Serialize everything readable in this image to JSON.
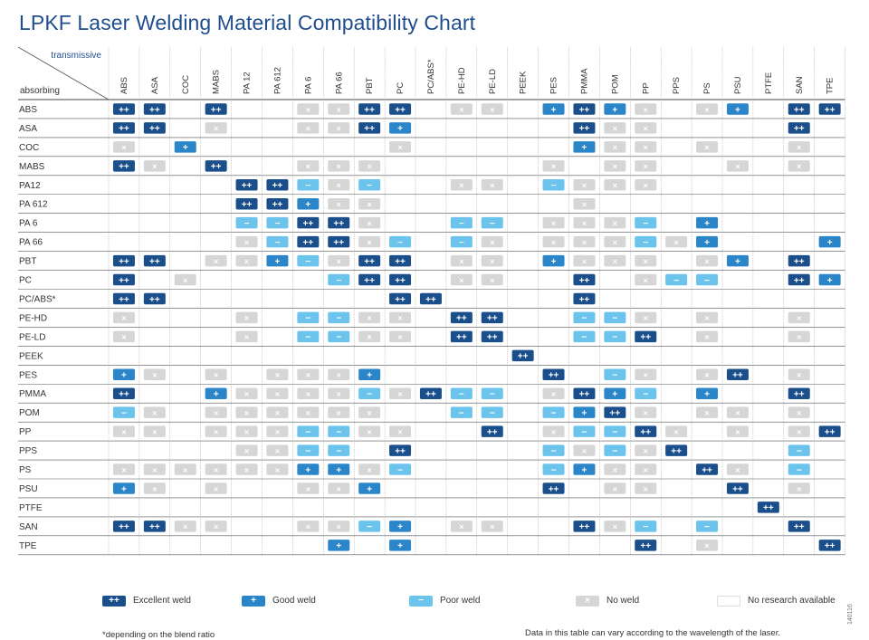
{
  "title": "LPKF Laser Welding Material Compatibility Chart",
  "chart_data": {
    "type": "table",
    "title": "LPKF Laser Welding Material Compatibility Chart",
    "column_axis_label": "transmissive",
    "row_axis_label": "absorbing",
    "columns": [
      "ABS",
      "ASA",
      "COC",
      "MABS",
      "PA 12",
      "PA 612",
      "PA 6",
      "PA 66",
      "PBT",
      "PC",
      "PC/ABS*",
      "PE-HD",
      "PE-LD",
      "PEEK",
      "PES",
      "PMMA",
      "POM",
      "PP",
      "PPS",
      "PS",
      "PSU",
      "PTFE",
      "SAN",
      "TPE"
    ],
    "rows": [
      "ABS",
      "ASA",
      "COC",
      "MABS",
      "PA12",
      "PA 612",
      "PA 6",
      "PA 66",
      "PBT",
      "PC",
      "PC/ABS*",
      "PE-HD",
      "PE-LD",
      "PEEK",
      "PES",
      "PMMA",
      "POM",
      "PP",
      "PPS",
      "PS",
      "PSU",
      "PTFE",
      "SAN",
      "TPE"
    ],
    "cells": [
      [
        "E",
        "E",
        "",
        "E",
        "",
        "",
        "N",
        "N",
        "E",
        "E",
        "",
        "N",
        "N",
        "",
        "G",
        "E",
        "G",
        "N",
        "",
        "N",
        "G",
        "",
        "E",
        "E"
      ],
      [
        "E",
        "E",
        "",
        "N",
        "",
        "",
        "N",
        "N",
        "E",
        "G",
        "",
        "",
        "",
        "",
        "",
        "E",
        "N",
        "N",
        "",
        "",
        "",
        "",
        "E",
        ""
      ],
      [
        "N",
        "",
        "G",
        "",
        "",
        "",
        "",
        "",
        "",
        "N",
        "",
        "",
        "",
        "",
        "",
        "G",
        "N",
        "N",
        "",
        "N",
        "",
        "",
        "N",
        ""
      ],
      [
        "E",
        "N",
        "",
        "E",
        "",
        "",
        "N",
        "N",
        "N",
        "",
        "",
        "",
        "",
        "",
        "N",
        "",
        "N",
        "N",
        "",
        "",
        "N",
        "",
        "N",
        ""
      ],
      [
        "",
        "",
        "",
        "",
        "E",
        "E",
        "P",
        "N",
        "P",
        "",
        "",
        "N",
        "N",
        "",
        "P",
        "N",
        "N",
        "N",
        "",
        "",
        "",
        "",
        "",
        ""
      ],
      [
        "",
        "",
        "",
        "",
        "E",
        "E",
        "G",
        "N",
        "N",
        "",
        "",
        "",
        "",
        "",
        "",
        "N",
        "",
        "",
        "",
        "",
        "",
        "",
        "",
        ""
      ],
      [
        "",
        "",
        "",
        "",
        "P",
        "P",
        "E",
        "E",
        "N",
        "",
        "",
        "P",
        "P",
        "",
        "N",
        "N",
        "N",
        "P",
        "",
        "G",
        "",
        "",
        "",
        ""
      ],
      [
        "",
        "",
        "",
        "",
        "N",
        "P",
        "E",
        "E",
        "N",
        "P",
        "",
        "P",
        "N",
        "",
        "N",
        "N",
        "N",
        "P",
        "N",
        "G",
        "",
        "",
        "",
        "G"
      ],
      [
        "E",
        "E",
        "",
        "N",
        "N",
        "G",
        "P",
        "N",
        "E",
        "E",
        "",
        "N",
        "N",
        "",
        "G",
        "N",
        "N",
        "N",
        "",
        "N",
        "G",
        "",
        "E",
        ""
      ],
      [
        "E",
        "",
        "N",
        "",
        "",
        "",
        "",
        "P",
        "E",
        "E",
        "",
        "N",
        "N",
        "",
        "",
        "E",
        "",
        "N",
        "P",
        "P",
        "",
        "",
        "E",
        "G"
      ],
      [
        "E",
        "E",
        "",
        "",
        "",
        "",
        "",
        "",
        "",
        "E",
        "E",
        "",
        "",
        "",
        "",
        "E",
        "",
        "",
        "",
        "",
        "",
        "",
        "",
        ""
      ],
      [
        "N",
        "",
        "",
        "",
        "N",
        "",
        "P",
        "P",
        "N",
        "N",
        "",
        "E",
        "E",
        "",
        "",
        "P",
        "P",
        "N",
        "",
        "N",
        "",
        "",
        "N",
        ""
      ],
      [
        "N",
        "",
        "",
        "",
        "N",
        "",
        "P",
        "P",
        "N",
        "N",
        "",
        "E",
        "E",
        "",
        "",
        "P",
        "P",
        "E",
        "",
        "N",
        "",
        "",
        "N",
        ""
      ],
      [
        "",
        "",
        "",
        "",
        "",
        "",
        "",
        "",
        "",
        "",
        "",
        "",
        "",
        "E",
        "",
        "",
        "",
        "",
        "",
        "",
        "",
        "",
        "",
        ""
      ],
      [
        "G",
        "N",
        "",
        "N",
        "",
        "N",
        "N",
        "N",
        "G",
        "",
        "",
        "",
        "",
        "",
        "E",
        "",
        "P",
        "N",
        "",
        "N",
        "E",
        "",
        "N",
        ""
      ],
      [
        "E",
        "",
        "",
        "G",
        "N",
        "N",
        "N",
        "N",
        "P",
        "N",
        "E",
        "P",
        "P",
        "",
        "N",
        "E",
        "G",
        "P",
        "",
        "G",
        "",
        "",
        "E",
        ""
      ],
      [
        "P",
        "N",
        "",
        "N",
        "N",
        "N",
        "N",
        "N",
        "N",
        "",
        "",
        "P",
        "P",
        "",
        "P",
        "G",
        "E",
        "N",
        "",
        "N",
        "N",
        "",
        "N",
        ""
      ],
      [
        "N",
        "N",
        "",
        "N",
        "N",
        "N",
        "P",
        "P",
        "N",
        "N",
        "",
        "",
        "E",
        "",
        "N",
        "P",
        "P",
        "E",
        "N",
        "",
        "N",
        "",
        "N",
        "E"
      ],
      [
        "",
        "",
        "",
        "",
        "N",
        "N",
        "P",
        "P",
        "",
        "E",
        "",
        "",
        "",
        "",
        "P",
        "N",
        "P",
        "N",
        "E",
        "",
        "",
        "",
        "P",
        ""
      ],
      [
        "N",
        "N",
        "N",
        "N",
        "N",
        "N",
        "G",
        "G",
        "N",
        "P",
        "",
        "",
        "",
        "",
        "P",
        "G",
        "N",
        "N",
        "",
        "E",
        "N",
        "",
        "P",
        ""
      ],
      [
        "G",
        "N",
        "",
        "N",
        "",
        "",
        "N",
        "N",
        "G",
        "",
        "",
        "",
        "",
        "",
        "E",
        "",
        "N",
        "N",
        "",
        "",
        "E",
        "",
        "N",
        ""
      ],
      [
        "",
        "",
        "",
        "",
        "",
        "",
        "",
        "",
        "",
        "",
        "",
        "",
        "",
        "",
        "",
        "",
        "",
        "",
        "",
        "",
        "",
        "E",
        "",
        ""
      ],
      [
        "E",
        "E",
        "N",
        "N",
        "",
        "",
        "N",
        "N",
        "P",
        "G",
        "",
        "N",
        "N",
        "",
        "",
        "E",
        "N",
        "P",
        "",
        "P",
        "",
        "",
        "E",
        ""
      ],
      [
        "",
        "",
        "",
        "",
        "",
        "",
        "",
        "G",
        "",
        "G",
        "",
        "",
        "",
        "",
        "",
        "",
        "",
        "E",
        "",
        "N",
        "",
        "",
        "",
        "E"
      ]
    ],
    "legend": [
      {
        "key": "E",
        "symbol": "++",
        "label": "Excellent weld",
        "color": "#1b4f8c"
      },
      {
        "key": "G",
        "symbol": "+",
        "label": "Good weld",
        "color": "#2b86c9"
      },
      {
        "key": "P",
        "symbol": "−",
        "label": "Poor weld",
        "color": "#6cc4ec"
      },
      {
        "key": "N",
        "symbol": "×",
        "label": "No weld",
        "color": "#d6d6d6"
      },
      {
        "key": "",
        "symbol": "",
        "label": "No research available",
        "color": "#ffffff"
      }
    ]
  },
  "footnote": "*depending on the blend ratio",
  "disclaimer": "Data in this table can vary according to the wavelength of the laser.",
  "doc_id": "140116"
}
